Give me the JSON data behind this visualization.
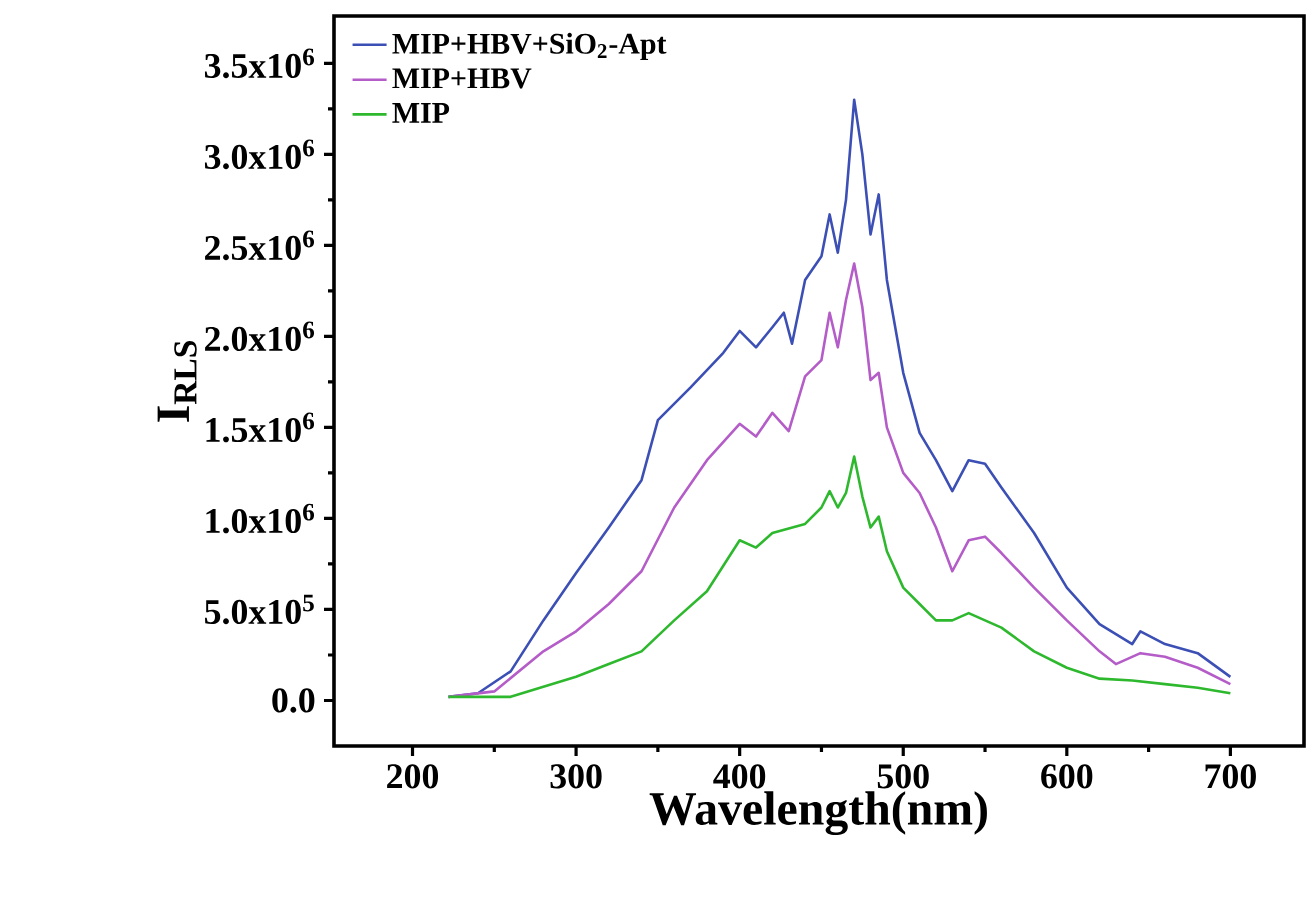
{
  "chart_data": {
    "type": "line",
    "xlabel": "Wavelength(nm)",
    "ylabel": "I$_{RLS}$",
    "xlim": [
      152,
      745
    ],
    "ylim": [
      -250000,
      3760000
    ],
    "xticks": [
      200,
      300,
      400,
      500,
      600,
      700
    ],
    "yticks": [
      {
        "value": 0,
        "label": "0.0"
      },
      {
        "value": 500000,
        "label": "5.0x10$^{5}$"
      },
      {
        "value": 1000000,
        "label": "1.0x10$^{6}$"
      },
      {
        "value": 1500000,
        "label": "1.5x10$^{6}$"
      },
      {
        "value": 2000000,
        "label": "2.0x10$^{6}$"
      },
      {
        "value": 2500000,
        "label": "2.5x10$^{6}$"
      },
      {
        "value": 3000000,
        "label": "3.0x10$^{6}$"
      },
      {
        "value": 3500000,
        "label": "3.5x10$^{6}$"
      }
    ],
    "grid": false,
    "legend": "top left",
    "marker": "none",
    "line_style": "solid",
    "series": [
      {
        "name": "MIP+HBV+SiO$_{2}$-Apt",
        "color": "#3c4fb5",
        "x": [
          222,
          240,
          260,
          280,
          300,
          320,
          340,
          350,
          370,
          390,
          400,
          410,
          420,
          427,
          432,
          440,
          450,
          455,
          460,
          465,
          470,
          475,
          480,
          485,
          490,
          500,
          510,
          520,
          530,
          540,
          550,
          560,
          580,
          600,
          620,
          640,
          645,
          660,
          680,
          700
        ],
        "values": [
          20000,
          40000,
          160000,
          440000,
          700000,
          950000,
          1210000,
          1540000,
          1720000,
          1910000,
          2030000,
          1940000,
          2050000,
          2130000,
          1960000,
          2310000,
          2440000,
          2670000,
          2460000,
          2750000,
          3300000,
          3000000,
          2560000,
          2780000,
          2310000,
          1800000,
          1470000,
          1320000,
          1150000,
          1320000,
          1300000,
          1170000,
          920000,
          620000,
          420000,
          310000,
          380000,
          310000,
          260000,
          130000
        ]
      },
      {
        "name": "MIP+HBV",
        "color": "#b45cc8",
        "x": [
          222,
          250,
          280,
          300,
          320,
          340,
          360,
          380,
          400,
          410,
          420,
          430,
          440,
          450,
          455,
          460,
          465,
          470,
          475,
          480,
          485,
          490,
          500,
          510,
          520,
          530,
          540,
          550,
          560,
          580,
          600,
          620,
          630,
          645,
          660,
          680,
          700
        ],
        "values": [
          20000,
          50000,
          270000,
          380000,
          530000,
          710000,
          1060000,
          1320000,
          1520000,
          1450000,
          1580000,
          1480000,
          1780000,
          1870000,
          2130000,
          1940000,
          2200000,
          2400000,
          2160000,
          1760000,
          1800000,
          1500000,
          1250000,
          1140000,
          950000,
          710000,
          880000,
          900000,
          810000,
          620000,
          440000,
          270000,
          200000,
          260000,
          240000,
          180000,
          90000
        ]
      },
      {
        "name": "MIP",
        "color": "#2eb82e",
        "x": [
          222,
          260,
          300,
          320,
          340,
          360,
          380,
          400,
          410,
          420,
          440,
          450,
          455,
          460,
          465,
          470,
          475,
          480,
          485,
          490,
          500,
          510,
          520,
          530,
          540,
          560,
          580,
          600,
          620,
          640,
          660,
          680,
          700
        ],
        "values": [
          20000,
          20000,
          130000,
          200000,
          270000,
          440000,
          600000,
          880000,
          840000,
          920000,
          970000,
          1060000,
          1150000,
          1060000,
          1140000,
          1340000,
          1120000,
          950000,
          1010000,
          820000,
          620000,
          530000,
          440000,
          440000,
          480000,
          400000,
          270000,
          180000,
          120000,
          110000,
          90000,
          70000,
          40000
        ]
      }
    ]
  }
}
